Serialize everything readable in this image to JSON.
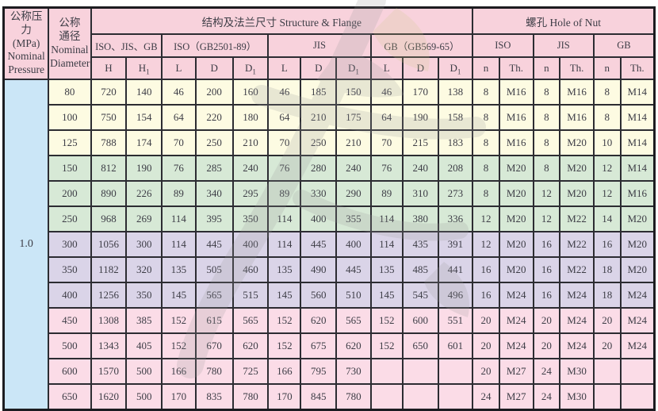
{
  "table": {
    "pressure_header": "公称压力\n(MPa)\nNominal\nPressure",
    "diameter_header": "公称\n通径\nNominal\nDiameter",
    "structure_group": "结构及法兰尺寸 Structure & Flange",
    "nut_group": "螺孔 Hole of Nut",
    "groups": [
      {
        "label": "ISO、JIS、GB"
      },
      {
        "label": "ISO（GB2501-89）"
      },
      {
        "label": "JIS"
      },
      {
        "label": "GB（GB569-65）"
      },
      {
        "label": "ISO"
      },
      {
        "label": "JIS"
      },
      {
        "label": "GB"
      }
    ],
    "columns": [
      {
        "label": "H",
        "sub": ""
      },
      {
        "label": "H",
        "sub": "1"
      },
      {
        "label": "L",
        "sub": ""
      },
      {
        "label": "D",
        "sub": ""
      },
      {
        "label": "D",
        "sub": "1"
      },
      {
        "label": "L",
        "sub": ""
      },
      {
        "label": "D",
        "sub": ""
      },
      {
        "label": "D",
        "sub": "1"
      },
      {
        "label": "L",
        "sub": ""
      },
      {
        "label": "D",
        "sub": ""
      },
      {
        "label": "D",
        "sub": "1"
      },
      {
        "label": "n",
        "sub": ""
      },
      {
        "label": "Th.",
        "sub": ""
      },
      {
        "label": "n",
        "sub": ""
      },
      {
        "label": "Th.",
        "sub": ""
      },
      {
        "label": "n",
        "sub": ""
      },
      {
        "label": "Th.",
        "sub": ""
      }
    ],
    "pressure_value": "1.0",
    "rows": [
      {
        "dn": "80",
        "band": "cream",
        "values": [
          "720",
          "140",
          "46",
          "200",
          "160",
          "46",
          "185",
          "150",
          "46",
          "170",
          "138",
          "8",
          "M16",
          "8",
          "M16",
          "8",
          "M14"
        ]
      },
      {
        "dn": "100",
        "band": "cream",
        "values": [
          "750",
          "154",
          "64",
          "220",
          "180",
          "64",
          "210",
          "175",
          "64",
          "190",
          "158",
          "8",
          "M16",
          "8",
          "M16",
          "8",
          "M14"
        ]
      },
      {
        "dn": "125",
        "band": "cream",
        "values": [
          "788",
          "174",
          "70",
          "250",
          "210",
          "70",
          "250",
          "210",
          "70",
          "215",
          "183",
          "8",
          "M16",
          "8",
          "M20",
          "10",
          "M14"
        ]
      },
      {
        "dn": "150",
        "band": "green",
        "values": [
          "812",
          "190",
          "76",
          "285",
          "240",
          "76",
          "280",
          "240",
          "76",
          "240",
          "208",
          "8",
          "M20",
          "8",
          "M20",
          "12",
          "M14"
        ]
      },
      {
        "dn": "200",
        "band": "green",
        "values": [
          "890",
          "226",
          "89",
          "340",
          "295",
          "89",
          "330",
          "290",
          "89",
          "310",
          "273",
          "8",
          "M20",
          "12",
          "M20",
          "12",
          "M16"
        ]
      },
      {
        "dn": "250",
        "band": "green",
        "values": [
          "968",
          "269",
          "114",
          "395",
          "350",
          "114",
          "400",
          "355",
          "114",
          "380",
          "336",
          "12",
          "M20",
          "12",
          "M22",
          "14",
          "M20"
        ]
      },
      {
        "dn": "300",
        "band": "purple",
        "values": [
          "1056",
          "300",
          "114",
          "445",
          "400",
          "114",
          "445",
          "400",
          "114",
          "435",
          "391",
          "12",
          "M20",
          "16",
          "M22",
          "16",
          "M20"
        ]
      },
      {
        "dn": "350",
        "band": "purple",
        "values": [
          "1182",
          "320",
          "135",
          "505",
          "460",
          "135",
          "490",
          "445",
          "135",
          "485",
          "441",
          "16",
          "M20",
          "16",
          "M22",
          "18",
          "M20"
        ]
      },
      {
        "dn": "400",
        "band": "purple",
        "values": [
          "1256",
          "350",
          "145",
          "565",
          "515",
          "145",
          "560",
          "510",
          "145",
          "545",
          "496",
          "16",
          "M24",
          "16",
          "M24",
          "18",
          "M24"
        ]
      },
      {
        "dn": "450",
        "band": "pink",
        "values": [
          "1308",
          "385",
          "152",
          "615",
          "565",
          "152",
          "620",
          "565",
          "152",
          "600",
          "551",
          "20",
          "M24",
          "20",
          "M24",
          "20",
          "M24"
        ]
      },
      {
        "dn": "500",
        "band": "pink",
        "values": [
          "1343",
          "405",
          "152",
          "670",
          "620",
          "152",
          "675",
          "620",
          "152",
          "650",
          "601",
          "20",
          "M24",
          "20",
          "M24",
          "20",
          "M24"
        ]
      },
      {
        "dn": "600",
        "band": "pink",
        "values": [
          "1570",
          "500",
          "166",
          "780",
          "725",
          "166",
          "795",
          "730",
          "",
          "",
          "",
          "20",
          "M27",
          "24",
          "M30",
          "",
          ""
        ]
      },
      {
        "dn": "650",
        "band": "pink",
        "values": [
          "1620",
          "500",
          "170",
          "835",
          "780",
          "170",
          "845",
          "780",
          "",
          "",
          "",
          "24",
          "M27",
          "24",
          "M30",
          "",
          ""
        ]
      }
    ]
  },
  "colors": {
    "header_pink": "#f8d2dc",
    "band_cream": "#fdfbe2",
    "band_green": "#d7e9d6",
    "band_purple": "#dad4e8",
    "band_pink": "#fbdce7",
    "pressure_blue": "#cbe6f7",
    "grid_line": "#2c2c32",
    "watermark_gray": "#9a9a9a",
    "watermark_yellow": "#cfc98a"
  }
}
